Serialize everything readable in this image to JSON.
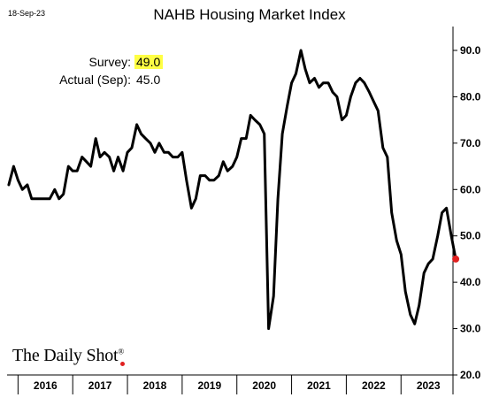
{
  "date_stamp": "18-Sep-23",
  "brand": "The Daily Shot",
  "brand_mark": "®",
  "annotation": {
    "survey_label": "Survey:",
    "survey_value": "49.0",
    "actual_label": "Actual (Sep):",
    "actual_value": "45.0",
    "highlight_color": "#ffff44"
  },
  "chart_data": {
    "type": "line",
    "title": "NAHB Housing Market Index",
    "xlabel": "",
    "ylabel": "",
    "ylim": [
      20,
      90
    ],
    "y_ticks": [
      "20.0",
      "30.0",
      "40.0",
      "50.0",
      "60.0",
      "70.0",
      "80.0",
      "90.0"
    ],
    "x_range": [
      2015.8,
      2023.95
    ],
    "x_tick_labels": [
      "2016",
      "2017",
      "2018",
      "2019",
      "2020",
      "2021",
      "2022",
      "2023"
    ],
    "grid": false,
    "line_color": "#000000",
    "last_point_color": "#e02020",
    "series": [
      {
        "values": [
          [
            2015.83,
            61
          ],
          [
            2015.92,
            65
          ],
          [
            2016.0,
            62
          ],
          [
            2016.08,
            60
          ],
          [
            2016.17,
            61
          ],
          [
            2016.25,
            58
          ],
          [
            2016.33,
            58
          ],
          [
            2016.42,
            58
          ],
          [
            2016.5,
            58
          ],
          [
            2016.58,
            58
          ],
          [
            2016.67,
            60
          ],
          [
            2016.75,
            58
          ],
          [
            2016.83,
            59
          ],
          [
            2016.92,
            65
          ],
          [
            2017.0,
            64
          ],
          [
            2017.08,
            64
          ],
          [
            2017.17,
            67
          ],
          [
            2017.25,
            66
          ],
          [
            2017.33,
            65
          ],
          [
            2017.42,
            71
          ],
          [
            2017.5,
            67
          ],
          [
            2017.58,
            68
          ],
          [
            2017.67,
            67
          ],
          [
            2017.75,
            64
          ],
          [
            2017.83,
            67
          ],
          [
            2017.92,
            64
          ],
          [
            2018.0,
            68
          ],
          [
            2018.08,
            69
          ],
          [
            2018.17,
            74
          ],
          [
            2018.25,
            72
          ],
          [
            2018.33,
            71
          ],
          [
            2018.42,
            70
          ],
          [
            2018.5,
            68
          ],
          [
            2018.58,
            70
          ],
          [
            2018.67,
            68
          ],
          [
            2018.75,
            68
          ],
          [
            2018.83,
            67
          ],
          [
            2018.92,
            67
          ],
          [
            2019.0,
            68
          ],
          [
            2019.08,
            62
          ],
          [
            2019.17,
            56
          ],
          [
            2019.25,
            58
          ],
          [
            2019.33,
            63
          ],
          [
            2019.42,
            63
          ],
          [
            2019.5,
            62
          ],
          [
            2019.58,
            62
          ],
          [
            2019.67,
            63
          ],
          [
            2019.75,
            66
          ],
          [
            2019.83,
            64
          ],
          [
            2019.92,
            65
          ],
          [
            2020.0,
            67
          ],
          [
            2020.08,
            71
          ],
          [
            2020.17,
            71
          ],
          [
            2020.25,
            76
          ],
          [
            2020.33,
            75
          ],
          [
            2020.42,
            74
          ],
          [
            2020.5,
            72
          ],
          [
            2020.58,
            30
          ],
          [
            2020.67,
            37
          ],
          [
            2020.75,
            58
          ],
          [
            2020.83,
            72
          ],
          [
            2020.92,
            78
          ],
          [
            2021.0,
            83
          ],
          [
            2021.08,
            85
          ],
          [
            2021.17,
            90
          ],
          [
            2021.25,
            86
          ],
          [
            2021.33,
            83
          ],
          [
            2021.42,
            84
          ],
          [
            2021.5,
            82
          ],
          [
            2021.58,
            83
          ],
          [
            2021.67,
            83
          ],
          [
            2021.75,
            81
          ],
          [
            2021.83,
            80
          ],
          [
            2021.92,
            75
          ],
          [
            2022.0,
            76
          ],
          [
            2022.08,
            80
          ],
          [
            2022.17,
            83
          ],
          [
            2022.25,
            84
          ],
          [
            2022.33,
            83
          ],
          [
            2022.42,
            81
          ],
          [
            2022.5,
            79
          ],
          [
            2022.58,
            77
          ],
          [
            2022.67,
            69
          ],
          [
            2022.75,
            67
          ],
          [
            2022.83,
            55
          ],
          [
            2022.92,
            49
          ],
          [
            2023.0,
            46
          ],
          [
            2023.08,
            38
          ],
          [
            2023.17,
            33
          ],
          [
            2023.25,
            31
          ],
          [
            2023.33,
            35
          ],
          [
            2023.42,
            42
          ],
          [
            2023.5,
            44
          ],
          [
            2023.58,
            45
          ],
          [
            2023.67,
            50
          ],
          [
            2023.75,
            55
          ],
          [
            2023.83,
            56
          ],
          [
            2023.92,
            50
          ],
          [
            2024.0,
            45
          ]
        ]
      }
    ],
    "highlighted_point": [
      2024.0,
      45
    ]
  }
}
